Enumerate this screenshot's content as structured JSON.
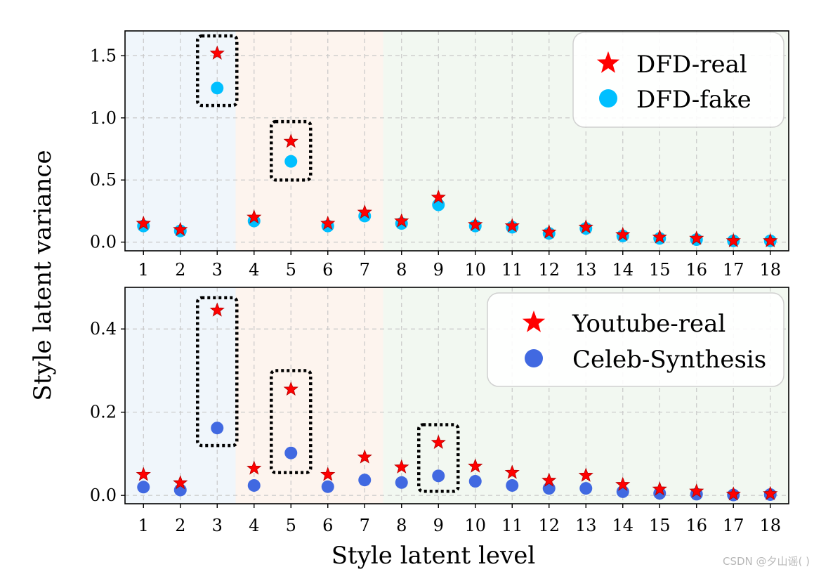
{
  "figure": {
    "ylabel": "Style latent variance",
    "xlabel": "Style latent level",
    "watermark": "CSDN @夕山谣(         )"
  },
  "colors": {
    "real_star": "#ff0000",
    "star_edge": "#b30000",
    "dfd_fake": "#00bfff",
    "celeb_synthesis": "#4169e1",
    "band_1": "#f0f6fb",
    "band_2": "#fdf4ee",
    "band_3": "#f2f8f1"
  },
  "chart_data": [
    {
      "type": "scatter",
      "x": [
        1,
        2,
        3,
        4,
        5,
        6,
        7,
        8,
        9,
        10,
        11,
        12,
        13,
        14,
        15,
        16,
        17,
        18
      ],
      "series": [
        {
          "name": "DFD-real",
          "marker": "star",
          "values": [
            0.15,
            0.1,
            1.52,
            0.2,
            0.81,
            0.15,
            0.24,
            0.17,
            0.36,
            0.14,
            0.13,
            0.08,
            0.12,
            0.06,
            0.04,
            0.03,
            0.01,
            0.01
          ]
        },
        {
          "name": "DFD-fake",
          "marker": "circle",
          "values": [
            0.13,
            0.09,
            1.24,
            0.17,
            0.65,
            0.13,
            0.21,
            0.15,
            0.3,
            0.13,
            0.12,
            0.07,
            0.11,
            0.05,
            0.03,
            0.02,
            0.01,
            0.01
          ]
        }
      ],
      "xlim": [
        0.5,
        18.5
      ],
      "ylim": [
        -0.07,
        1.7
      ],
      "yticks": [
        "0.0",
        "0.5",
        "1.0",
        "1.5"
      ],
      "ytick_values": [
        0,
        0.5,
        1.0,
        1.5
      ],
      "legend": "top-right",
      "grid": true,
      "bands": [
        [
          0.5,
          3.5
        ],
        [
          3.5,
          7.5
        ],
        [
          7.5,
          18.5
        ]
      ],
      "highlight_boxes": [
        {
          "level": 3,
          "from": 1.1,
          "to": 1.66
        },
        {
          "level": 5,
          "from": 0.5,
          "to": 0.97
        }
      ]
    },
    {
      "type": "scatter",
      "x": [
        1,
        2,
        3,
        4,
        5,
        6,
        7,
        8,
        9,
        10,
        11,
        12,
        13,
        14,
        15,
        16,
        17,
        18
      ],
      "series": [
        {
          "name": "Youtube-real",
          "marker": "star",
          "values": [
            0.05,
            0.03,
            0.445,
            0.065,
            0.255,
            0.05,
            0.092,
            0.068,
            0.127,
            0.07,
            0.055,
            0.036,
            0.048,
            0.026,
            0.015,
            0.01,
            0.003,
            0.004
          ]
        },
        {
          "name": "Celeb-Synthesis",
          "marker": "circle",
          "values": [
            0.02,
            0.013,
            0.162,
            0.024,
            0.102,
            0.021,
            0.037,
            0.031,
            0.047,
            0.034,
            0.024,
            0.017,
            0.017,
            0.009,
            0.005,
            0.003,
            0.001,
            0.002
          ]
        }
      ],
      "xlim": [
        0.5,
        18.5
      ],
      "ylim": [
        -0.02,
        0.5
      ],
      "yticks": [
        "0.0",
        "0.2",
        "0.4"
      ],
      "ytick_values": [
        0,
        0.2,
        0.4
      ],
      "legend": "top-right",
      "grid": true,
      "bands": [
        [
          0.5,
          3.5
        ],
        [
          3.5,
          7.5
        ],
        [
          7.5,
          18.5
        ]
      ],
      "highlight_boxes": [
        {
          "level": 3,
          "from": 0.12,
          "to": 0.475
        },
        {
          "level": 5,
          "from": 0.055,
          "to": 0.3
        },
        {
          "level": 9,
          "from": 0.01,
          "to": 0.17
        }
      ]
    }
  ]
}
